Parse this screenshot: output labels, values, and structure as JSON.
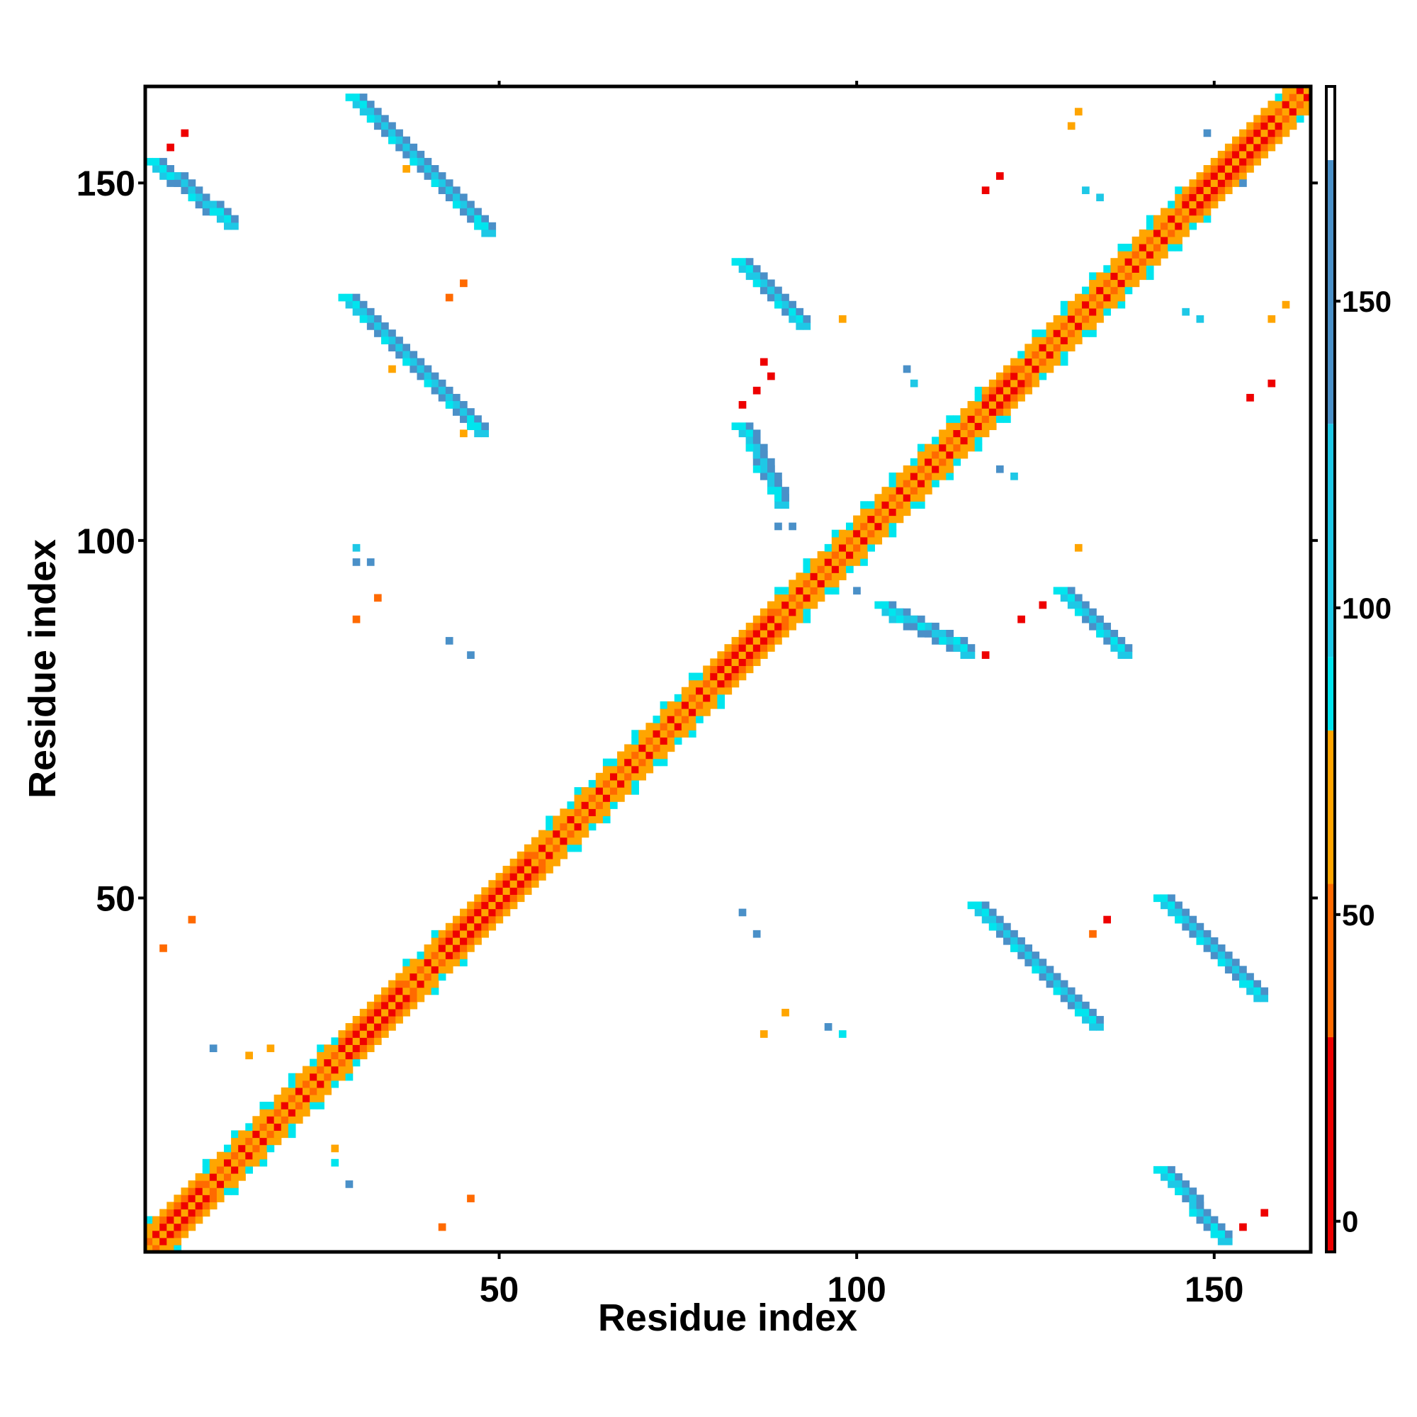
{
  "chart_data": {
    "type": "heatmap",
    "title": "",
    "xlabel": "Residue index",
    "ylabel": "Residue index",
    "xlim": [
      1,
      163
    ],
    "ylim": [
      1,
      163
    ],
    "x_ticks": [
      50,
      100,
      150
    ],
    "y_ticks": [
      50,
      100,
      150
    ],
    "grid": false,
    "colorbar": {
      "placement": "right",
      "range": [
        -5,
        185
      ],
      "ticks": [
        0,
        50,
        100,
        150
      ],
      "bands": [
        {
          "from": -5,
          "to": 30,
          "color": "#ee0000"
        },
        {
          "from": 30,
          "to": 55,
          "color": "#ff6a00"
        },
        {
          "from": 55,
          "to": 80,
          "color": "#ffa500"
        },
        {
          "from": 80,
          "to": 92,
          "color": "#00e5ee"
        },
        {
          "from": 92,
          "to": 130,
          "color": "#1ec8e6"
        },
        {
          "from": 130,
          "to": 173,
          "color": "#4a90c8"
        },
        {
          "from": 173,
          "to": 185,
          "color": "#ffffff"
        }
      ]
    },
    "colors": {
      "red": "#ee0000",
      "orange_red": "#ff6a00",
      "orange": "#ffa500",
      "cyan": "#00e5ee",
      "sky": "#1ec8e6",
      "steel": "#4a90c8"
    },
    "diagonal": {
      "from": 1,
      "to": 163
    },
    "helices": [
      [
        3,
        8
      ],
      [
        28,
        36
      ],
      [
        42,
        54
      ],
      [
        80,
        88
      ],
      [
        118,
        122
      ],
      [
        146,
        157
      ]
    ],
    "strand_segments": [
      {
        "x": [
          2,
          12
        ],
        "y": [
          152,
          144
        ],
        "color": "steel"
      },
      {
        "x": [
          30,
          48
        ],
        "y": [
          161,
          143
        ],
        "color": "steel"
      },
      {
        "x": [
          29,
          47
        ],
        "y": [
          133,
          115
        ],
        "color": "steel"
      },
      {
        "x": [
          84,
          92
        ],
        "y": [
          138,
          130
        ],
        "color": "steel"
      },
      {
        "x": [
          84,
          89
        ],
        "y": [
          115,
          105
        ],
        "color": "steel"
      },
      {
        "x": [
          104,
          115
        ],
        "y": [
          90,
          84
        ],
        "color": "steel"
      },
      {
        "x": [
          129,
          137
        ],
        "y": [
          92,
          84
        ],
        "color": "steel"
      },
      {
        "x": [
          117,
          133
        ],
        "y": [
          48,
          32
        ],
        "color": "steel"
      },
      {
        "x": [
          143,
          156
        ],
        "y": [
          49,
          36
        ],
        "color": "steel"
      },
      {
        "x": [
          143,
          151
        ],
        "y": [
          11,
          2
        ],
        "color": "steel"
      }
    ],
    "dots": [
      {
        "x": 4,
        "y": 155,
        "color": "red"
      },
      {
        "x": 6,
        "y": 157,
        "color": "red"
      },
      {
        "x": 37,
        "y": 152,
        "color": "orange"
      },
      {
        "x": 43,
        "y": 134,
        "color": "orange_red"
      },
      {
        "x": 45,
        "y": 136,
        "color": "orange_red"
      },
      {
        "x": 35,
        "y": 124,
        "color": "orange"
      },
      {
        "x": 45,
        "y": 115,
        "color": "orange"
      },
      {
        "x": 84,
        "y": 119,
        "color": "red"
      },
      {
        "x": 86,
        "y": 121,
        "color": "red"
      },
      {
        "x": 88,
        "y": 123,
        "color": "red"
      },
      {
        "x": 87,
        "y": 125,
        "color": "red"
      },
      {
        "x": 98,
        "y": 131,
        "color": "orange"
      },
      {
        "x": 107,
        "y": 124,
        "color": "steel"
      },
      {
        "x": 108,
        "y": 122,
        "color": "sky"
      },
      {
        "x": 120,
        "y": 110,
        "color": "steel"
      },
      {
        "x": 122,
        "y": 109,
        "color": "sky"
      },
      {
        "x": 89,
        "y": 102,
        "color": "steel"
      },
      {
        "x": 91,
        "y": 102,
        "color": "steel"
      },
      {
        "x": 118,
        "y": 149,
        "color": "red"
      },
      {
        "x": 120,
        "y": 151,
        "color": "red"
      },
      {
        "x": 131,
        "y": 160,
        "color": "orange"
      },
      {
        "x": 130,
        "y": 158,
        "color": "orange"
      },
      {
        "x": 132,
        "y": 149,
        "color": "sky"
      },
      {
        "x": 134,
        "y": 148,
        "color": "sky"
      },
      {
        "x": 149,
        "y": 157,
        "color": "steel"
      },
      {
        "x": 154,
        "y": 150,
        "color": "steel"
      },
      {
        "x": 146,
        "y": 132,
        "color": "sky"
      },
      {
        "x": 148,
        "y": 131,
        "color": "sky"
      },
      {
        "x": 160,
        "y": 133,
        "color": "orange"
      },
      {
        "x": 158,
        "y": 131,
        "color": "orange"
      },
      {
        "x": 155,
        "y": 120,
        "color": "red"
      },
      {
        "x": 158,
        "y": 122,
        "color": "red"
      },
      {
        "x": 131,
        "y": 99,
        "color": "orange"
      },
      {
        "x": 30,
        "y": 99,
        "color": "sky"
      },
      {
        "x": 30,
        "y": 97,
        "color": "steel"
      },
      {
        "x": 32,
        "y": 97,
        "color": "steel"
      },
      {
        "x": 30,
        "y": 89,
        "color": "orange_red"
      },
      {
        "x": 33,
        "y": 92,
        "color": "orange_red"
      },
      {
        "x": 43,
        "y": 86,
        "color": "steel"
      },
      {
        "x": 46,
        "y": 84,
        "color": "steel"
      },
      {
        "x": 100,
        "y": 93,
        "color": "steel"
      },
      {
        "x": 118,
        "y": 84,
        "color": "red"
      },
      {
        "x": 123,
        "y": 89,
        "color": "red"
      },
      {
        "x": 126,
        "y": 91,
        "color": "red"
      },
      {
        "x": 3,
        "y": 43,
        "color": "orange_red"
      },
      {
        "x": 7,
        "y": 47,
        "color": "orange_red"
      },
      {
        "x": 84,
        "y": 48,
        "color": "steel"
      },
      {
        "x": 86,
        "y": 45,
        "color": "steel"
      },
      {
        "x": 133,
        "y": 45,
        "color": "orange_red"
      },
      {
        "x": 135,
        "y": 47,
        "color": "red"
      },
      {
        "x": 87,
        "y": 31,
        "color": "orange"
      },
      {
        "x": 90,
        "y": 34,
        "color": "orange"
      },
      {
        "x": 96,
        "y": 32,
        "color": "steel"
      },
      {
        "x": 98,
        "y": 31,
        "color": "cyan"
      },
      {
        "x": 10,
        "y": 29,
        "color": "steel"
      },
      {
        "x": 15,
        "y": 28,
        "color": "orange"
      },
      {
        "x": 18,
        "y": 29,
        "color": "orange"
      },
      {
        "x": 27,
        "y": 15,
        "color": "orange"
      },
      {
        "x": 27,
        "y": 13,
        "color": "cyan"
      },
      {
        "x": 29,
        "y": 10,
        "color": "steel"
      },
      {
        "x": 42,
        "y": 4,
        "color": "orange_red"
      },
      {
        "x": 46,
        "y": 8,
        "color": "orange_red"
      },
      {
        "x": 157,
        "y": 6,
        "color": "red"
      },
      {
        "x": 154,
        "y": 4,
        "color": "red"
      }
    ]
  }
}
